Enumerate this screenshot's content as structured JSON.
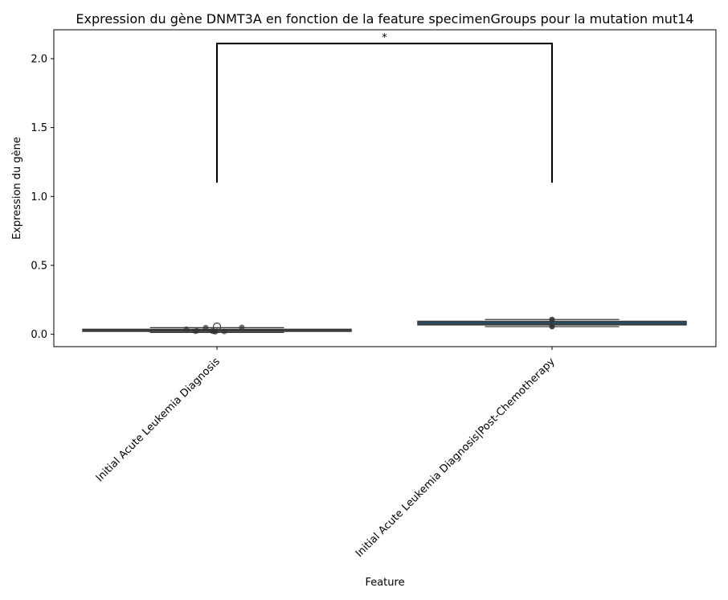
{
  "chart_data": {
    "type": "box",
    "title": "Expression du gène DNMT3A en fonction de la feature specimenGroups pour la mutation mut14",
    "xlabel": "Feature",
    "ylabel": "Expression du gène",
    "categories": [
      "Initial Acute Leukemia Diagnosis",
      "Initial Acute Leukemia Diagnosis|Post-Chemotherapy"
    ],
    "ylim": [
      -0.09,
      2.21
    ],
    "yticks": [
      0.0,
      0.5,
      1.0,
      1.5,
      2.0
    ],
    "ytick_labels": [
      "0.0",
      "0.5",
      "1.0",
      "1.5",
      "2.0"
    ],
    "boxes": [
      {
        "category": "Initial Acute Leukemia Diagnosis",
        "q1": 0.021,
        "median": 0.028,
        "q3": 0.036,
        "whisker_low": 0.013,
        "whisker_high": 0.048,
        "outliers": [
          0.055
        ]
      },
      {
        "category": "Initial Acute Leukemia Diagnosis|Post-Chemotherapy",
        "q1": 0.068,
        "median": 0.08,
        "q3": 0.094,
        "whisker_low": 0.055,
        "whisker_high": 0.107,
        "outliers": []
      }
    ],
    "points": [
      {
        "category": 0,
        "values": [
          0.036,
          0.025,
          0.022,
          0.048,
          0.021,
          0.018,
          0.024,
          0.05,
          0.02
        ]
      },
      {
        "category": 1,
        "values": [
          0.107,
          0.105,
          0.058,
          0.055
        ]
      }
    ],
    "annotation": {
      "text": "*",
      "from": 0,
      "to": 1,
      "y_base": 1.1,
      "y_top": 2.11
    },
    "colors": {
      "box_fill": "#1f5f8b",
      "box_edge": "#3a3a3a",
      "point": "#333333",
      "bracket": "#000000"
    },
    "grid": false,
    "legend": "none"
  }
}
